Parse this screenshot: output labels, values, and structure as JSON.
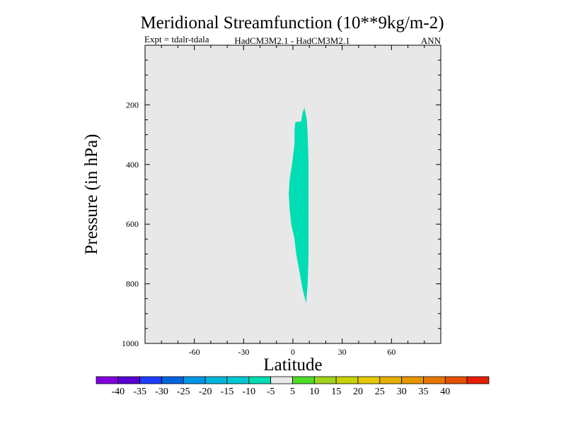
{
  "chart_data": {
    "type": "contour",
    "title": "Meridional Streamfunction (10**9kg/m-2)",
    "subtitle_left": "Expt = tdalr-tdala",
    "subtitle_center": "HadCM3M2.1 - HadCM3M2.1",
    "subtitle_right": "ANN",
    "xlabel": "Latitude",
    "ylabel": "Pressure (in hPa)",
    "xlim": [
      -90,
      90
    ],
    "ylim": [
      1000,
      0
    ],
    "x_ticks": [
      -60,
      -30,
      0,
      30,
      60
    ],
    "y_ticks": [
      200,
      400,
      600,
      800,
      1000
    ],
    "background_color": "#e8e8e8",
    "contour_region": {
      "level": "-10 to -5",
      "color": "#00dcb4",
      "outline": [
        {
          "lat": 8,
          "p": 865
        },
        {
          "lat": 9,
          "p": 800
        },
        {
          "lat": 9.5,
          "p": 700
        },
        {
          "lat": 9.5,
          "p": 600
        },
        {
          "lat": 9.5,
          "p": 500
        },
        {
          "lat": 9.5,
          "p": 400
        },
        {
          "lat": 9,
          "p": 300
        },
        {
          "lat": 8.5,
          "p": 250
        },
        {
          "lat": 7,
          "p": 210
        },
        {
          "lat": 6,
          "p": 225
        },
        {
          "lat": 5,
          "p": 255
        },
        {
          "lat": 1.5,
          "p": 258
        },
        {
          "lat": 1,
          "p": 280
        },
        {
          "lat": 1,
          "p": 330
        },
        {
          "lat": -0.5,
          "p": 400
        },
        {
          "lat": -2,
          "p": 450
        },
        {
          "lat": -2.5,
          "p": 500
        },
        {
          "lat": -2,
          "p": 550
        },
        {
          "lat": -1,
          "p": 600
        },
        {
          "lat": 1,
          "p": 650
        },
        {
          "lat": 2,
          "p": 700
        },
        {
          "lat": 4,
          "p": 760
        },
        {
          "lat": 6,
          "p": 820
        }
      ]
    },
    "colorbar": {
      "colors": [
        "#8200dc",
        "#5a00d2",
        "#1e3cff",
        "#0064dc",
        "#0096e6",
        "#00b4dc",
        "#00c8d2",
        "#00dcb4",
        "#e8e8e8",
        "#50dc28",
        "#a0d21e",
        "#c8d200",
        "#e6c800",
        "#e6af00",
        "#e69600",
        "#e67800",
        "#e65000",
        "#e61e00"
      ],
      "labels": [
        "-40",
        "-35",
        "-30",
        "-25",
        "-20",
        "-15",
        "-10",
        "-5",
        "5",
        "10",
        "15",
        "20",
        "25",
        "30",
        "35",
        "40"
      ]
    }
  }
}
